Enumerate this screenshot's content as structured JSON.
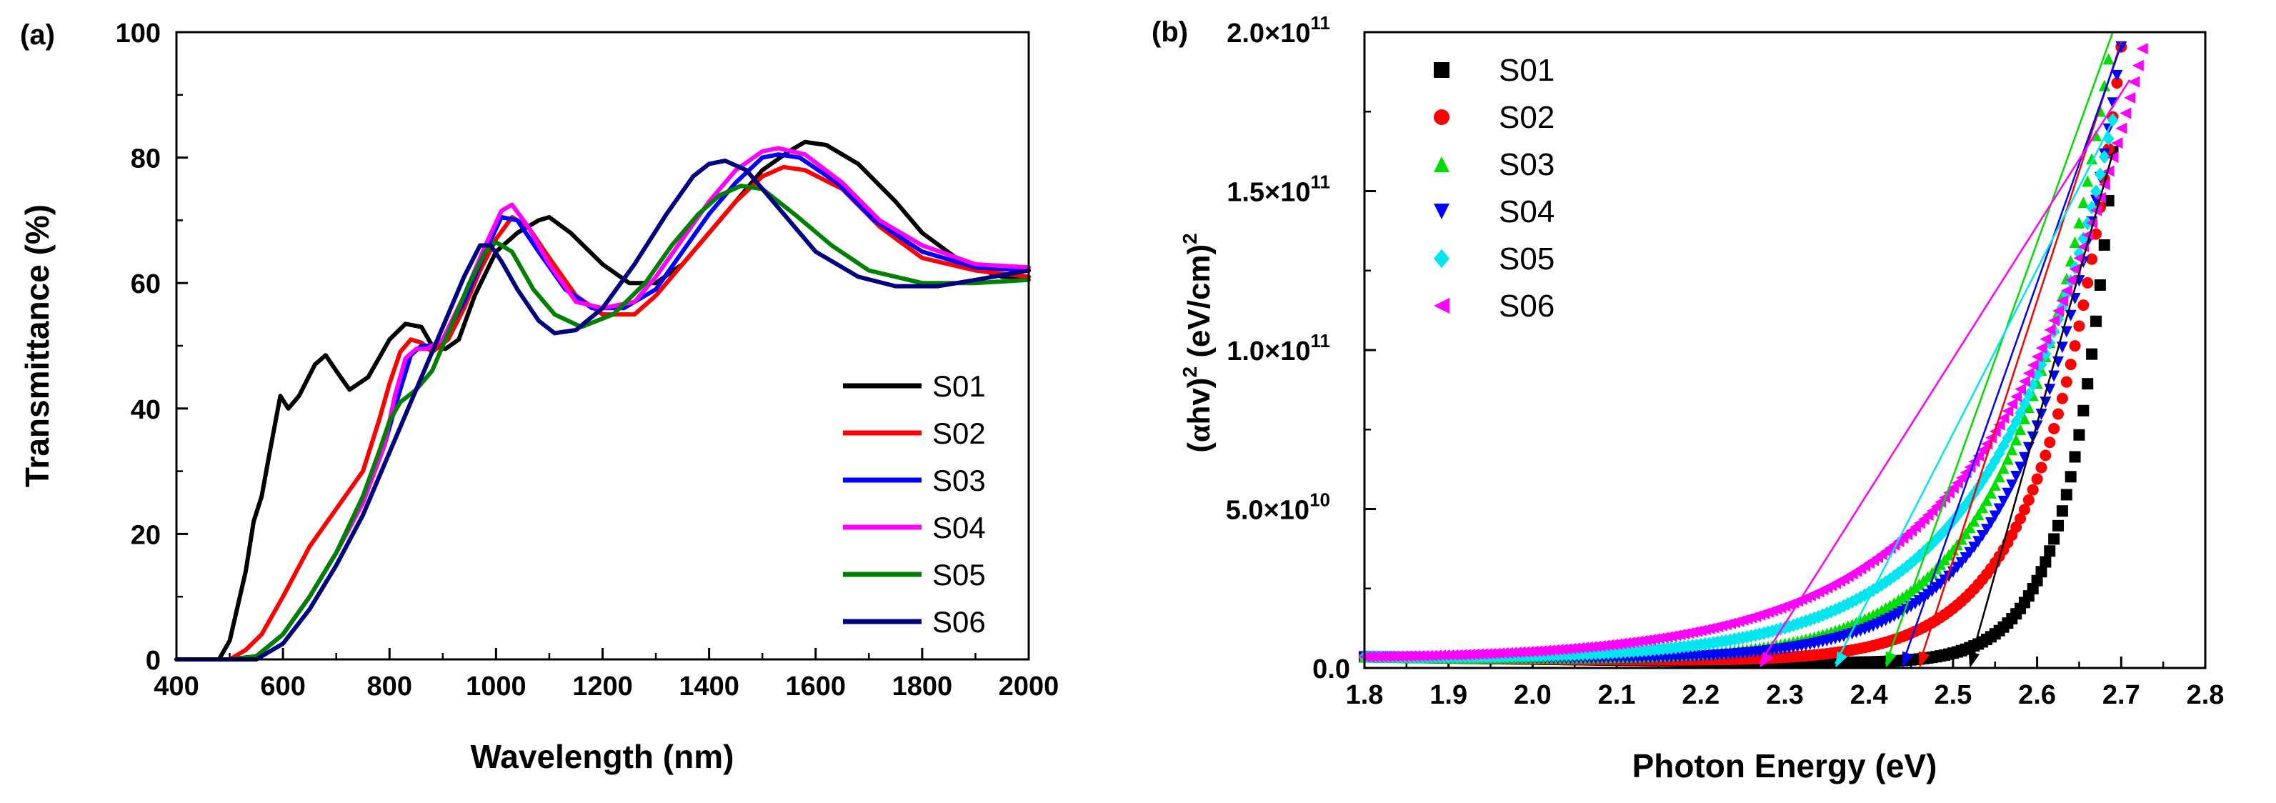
{
  "chart_data": [
    {
      "type": "line",
      "panel_label": "(a)",
      "xlabel": "Wavelength (nm)",
      "ylabel": "Transmittance (%)",
      "xlim": [
        400,
        2000
      ],
      "ylim": [
        0,
        100
      ],
      "x_ticks": [
        400,
        600,
        800,
        1000,
        1200,
        1400,
        1600,
        1800,
        2000
      ],
      "y_ticks": [
        0,
        20,
        40,
        60,
        80,
        100
      ],
      "legend_position": "bottom-right",
      "series": [
        {
          "name": "S01",
          "color": "#000000",
          "points": [
            [
              400,
              0
            ],
            [
              480,
              0
            ],
            [
              500,
              3
            ],
            [
              530,
              14
            ],
            [
              545,
              22
            ],
            [
              560,
              26
            ],
            [
              575,
              33
            ],
            [
              595,
              42
            ],
            [
              610,
              40
            ],
            [
              630,
              42
            ],
            [
              660,
              47
            ],
            [
              680,
              48.5
            ],
            [
              700,
              46
            ],
            [
              725,
              43
            ],
            [
              760,
              45
            ],
            [
              800,
              51
            ],
            [
              830,
              53.5
            ],
            [
              860,
              53
            ],
            [
              880,
              50
            ],
            [
              905,
              49.5
            ],
            [
              930,
              51
            ],
            [
              960,
              58
            ],
            [
              1000,
              65
            ],
            [
              1040,
              68
            ],
            [
              1080,
              70
            ],
            [
              1100,
              70.5
            ],
            [
              1140,
              68
            ],
            [
              1200,
              63
            ],
            [
              1250,
              60
            ],
            [
              1300,
              60
            ],
            [
              1350,
              63
            ],
            [
              1400,
              68
            ],
            [
              1450,
              73
            ],
            [
              1500,
              78
            ],
            [
              1550,
              81
            ],
            [
              1580,
              82.5
            ],
            [
              1620,
              82
            ],
            [
              1680,
              79
            ],
            [
              1750,
              73
            ],
            [
              1800,
              68
            ],
            [
              1880,
              63
            ],
            [
              1950,
              61
            ],
            [
              2000,
              61
            ]
          ]
        },
        {
          "name": "S02",
          "color": "#ff0000",
          "points": [
            [
              400,
              0
            ],
            [
              500,
              0
            ],
            [
              530,
              1.5
            ],
            [
              560,
              4
            ],
            [
              600,
              10
            ],
            [
              650,
              18
            ],
            [
              700,
              24
            ],
            [
              750,
              30
            ],
            [
              780,
              38
            ],
            [
              800,
              44
            ],
            [
              820,
              49
            ],
            [
              840,
              51
            ],
            [
              860,
              50.5
            ],
            [
              880,
              49
            ],
            [
              910,
              51
            ],
            [
              940,
              56
            ],
            [
              970,
              62
            ],
            [
              1000,
              67
            ],
            [
              1030,
              70.5
            ],
            [
              1060,
              69
            ],
            [
              1100,
              64
            ],
            [
              1150,
              58
            ],
            [
              1200,
              55
            ],
            [
              1260,
              55
            ],
            [
              1300,
              58
            ],
            [
              1350,
              63
            ],
            [
              1400,
              68
            ],
            [
              1450,
              73
            ],
            [
              1500,
              77
            ],
            [
              1540,
              78.5
            ],
            [
              1580,
              78
            ],
            [
              1650,
              75
            ],
            [
              1720,
              69
            ],
            [
              1800,
              64
            ],
            [
              1900,
              62
            ],
            [
              2000,
              61
            ]
          ]
        },
        {
          "name": "S03",
          "color": "#0000ff",
          "points": [
            [
              400,
              0
            ],
            [
              500,
              0
            ],
            [
              550,
              0.5
            ],
            [
              600,
              4
            ],
            [
              650,
              10
            ],
            [
              700,
              17
            ],
            [
              750,
              25
            ],
            [
              790,
              34
            ],
            [
              820,
              43
            ],
            [
              840,
              48.5
            ],
            [
              860,
              50
            ],
            [
              880,
              50
            ],
            [
              900,
              51
            ],
            [
              940,
              57
            ],
            [
              980,
              65
            ],
            [
              1010,
              70.5
            ],
            [
              1040,
              70
            ],
            [
              1080,
              65
            ],
            [
              1130,
              59
            ],
            [
              1180,
              56
            ],
            [
              1240,
              56
            ],
            [
              1300,
              59
            ],
            [
              1350,
              65
            ],
            [
              1400,
              71
            ],
            [
              1450,
              76
            ],
            [
              1500,
              80
            ],
            [
              1530,
              80.5
            ],
            [
              1570,
              80
            ],
            [
              1640,
              76
            ],
            [
              1710,
              70
            ],
            [
              1800,
              65
            ],
            [
              1900,
              62.5
            ],
            [
              2000,
              62
            ]
          ]
        },
        {
          "name": "S04",
          "color": "#ff00ff",
          "points": [
            [
              400,
              0
            ],
            [
              500,
              0
            ],
            [
              550,
              0.5
            ],
            [
              600,
              4
            ],
            [
              650,
              10
            ],
            [
              700,
              17
            ],
            [
              750,
              25
            ],
            [
              790,
              34
            ],
            [
              810,
              42
            ],
            [
              830,
              48
            ],
            [
              850,
              49.5
            ],
            [
              870,
              49.5
            ],
            [
              900,
              51
            ],
            [
              940,
              58
            ],
            [
              980,
              66
            ],
            [
              1010,
              71.5
            ],
            [
              1030,
              72.5
            ],
            [
              1060,
              69
            ],
            [
              1100,
              63
            ],
            [
              1150,
              57
            ],
            [
              1200,
              56
            ],
            [
              1260,
              57
            ],
            [
              1300,
              61
            ],
            [
              1350,
              67
            ],
            [
              1400,
              73
            ],
            [
              1450,
              78
            ],
            [
              1500,
              81
            ],
            [
              1530,
              81.5
            ],
            [
              1580,
              80.5
            ],
            [
              1650,
              76
            ],
            [
              1720,
              70
            ],
            [
              1800,
              66
            ],
            [
              1900,
              63
            ],
            [
              2000,
              62.5
            ]
          ]
        },
        {
          "name": "S05",
          "color": "#008000",
          "points": [
            [
              400,
              0
            ],
            [
              500,
              0
            ],
            [
              550,
              0.5
            ],
            [
              600,
              4
            ],
            [
              650,
              10
            ],
            [
              700,
              17
            ],
            [
              750,
              26
            ],
            [
              780,
              33
            ],
            [
              800,
              38
            ],
            [
              820,
              41
            ],
            [
              850,
              43
            ],
            [
              880,
              46
            ],
            [
              910,
              52
            ],
            [
              950,
              60
            ],
            [
              980,
              65
            ],
            [
              1000,
              66.5
            ],
            [
              1030,
              65
            ],
            [
              1070,
              59
            ],
            [
              1110,
              55
            ],
            [
              1160,
              53
            ],
            [
              1220,
              55
            ],
            [
              1280,
              60
            ],
            [
              1330,
              66
            ],
            [
              1380,
              71
            ],
            [
              1420,
              74
            ],
            [
              1460,
              75.5
            ],
            [
              1500,
              75
            ],
            [
              1560,
              71
            ],
            [
              1630,
              66
            ],
            [
              1700,
              62
            ],
            [
              1800,
              60
            ],
            [
              1900,
              60
            ],
            [
              2000,
              60.5
            ]
          ]
        },
        {
          "name": "S06",
          "color": "#000080",
          "points": [
            [
              400,
              0
            ],
            [
              500,
              0
            ],
            [
              550,
              0
            ],
            [
              600,
              2.5
            ],
            [
              650,
              8
            ],
            [
              700,
              15
            ],
            [
              750,
              23
            ],
            [
              790,
              31
            ],
            [
              820,
              37
            ],
            [
              850,
              43
            ],
            [
              880,
              49
            ],
            [
              910,
              55
            ],
            [
              940,
              61
            ],
            [
              970,
              66
            ],
            [
              990,
              66
            ],
            [
              1010,
              63.5
            ],
            [
              1040,
              59
            ],
            [
              1080,
              54
            ],
            [
              1110,
              52
            ],
            [
              1150,
              52.5
            ],
            [
              1200,
              56
            ],
            [
              1260,
              63
            ],
            [
              1320,
              71
            ],
            [
              1370,
              77
            ],
            [
              1400,
              79
            ],
            [
              1430,
              79.5
            ],
            [
              1470,
              78
            ],
            [
              1530,
              72
            ],
            [
              1600,
              65
            ],
            [
              1680,
              61
            ],
            [
              1750,
              59.5
            ],
            [
              1830,
              59.5
            ],
            [
              1900,
              60.5
            ],
            [
              2000,
              62
            ]
          ]
        }
      ]
    },
    {
      "type": "scatter",
      "panel_label": "(b)",
      "xlabel": "Photon Energy (eV)",
      "ylabel_parts": [
        "(",
        "α",
        "hv)",
        "2",
        " (eV/cm)",
        "2"
      ],
      "xlim": [
        1.8,
        2.8
      ],
      "ylim": [
        0,
        200000000000.0
      ],
      "x_ticks": [
        "1.8",
        "1.9",
        "2.0",
        "2.1",
        "2.2",
        "2.3",
        "2.4",
        "2.5",
        "2.6",
        "2.7",
        "2.8"
      ],
      "y_ticks": [
        {
          "value": 0,
          "mant": "0.0",
          "exp": ""
        },
        {
          "value": 50000000000.0,
          "mant": "5.0",
          "exp": "10"
        },
        {
          "value": 100000000000.0,
          "mant": "1.0",
          "exp": "11"
        },
        {
          "value": 150000000000.0,
          "mant": "1.5",
          "exp": "11"
        },
        {
          "value": 200000000000.0,
          "mant": "2.0",
          "exp": "11"
        }
      ],
      "tick_times": "×10",
      "legend_position": "top-left",
      "series": [
        {
          "name": "S01",
          "color": "#000000",
          "marker": "square",
          "eg": 2.52,
          "e_end": 2.69,
          "y_end": 162000000000.0,
          "k": 20,
          "gap_eV": 2.52,
          "fit_end": [
            2.69,
            162000000000.0
          ]
        },
        {
          "name": "S02",
          "color": "#ff0000",
          "marker": "circle",
          "eg": 2.46,
          "e_end": 2.7,
          "y_end": 195000000000.0,
          "k": 12,
          "gap_eV": 2.46,
          "fit_end": [
            2.7,
            197000000000.0
          ]
        },
        {
          "name": "S03",
          "color": "#00dd00",
          "marker": "triangle-up",
          "eg": 2.42,
          "e_end": 2.69,
          "y_end": 200000000000.0,
          "k": 9,
          "gap_eV": 2.42,
          "fit_end": [
            2.69,
            200000000000.0
          ]
        },
        {
          "name": "S04",
          "color": "#0000ff",
          "marker": "triangle-down",
          "eg": 2.44,
          "e_end": 2.7,
          "y_end": 195000000000.0,
          "k": 9.5,
          "gap_eV": 2.44,
          "fit_end": [
            2.7,
            196000000000.0
          ]
        },
        {
          "name": "S05",
          "color": "#00e5ee",
          "marker": "diamond",
          "eg": 2.36,
          "e_end": 2.69,
          "y_end": 172000000000.0,
          "k": 7,
          "gap_eV": 2.36,
          "fit_end": [
            2.69,
            172000000000.0
          ]
        },
        {
          "name": "S06",
          "color": "#ff00ff",
          "marker": "triangle-left",
          "eg": 2.27,
          "e_end": 2.73,
          "y_end": 200000000000.0,
          "k": 5.5,
          "gap_eV": 2.27,
          "fit_end": [
            2.71,
            185000000000.0
          ]
        }
      ]
    }
  ]
}
